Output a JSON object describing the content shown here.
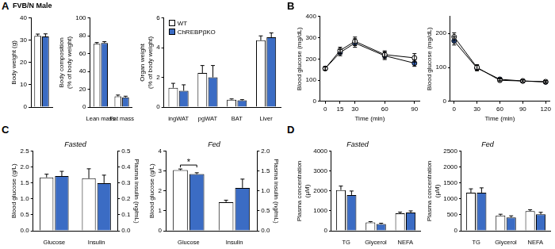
{
  "title": "FVB/N Male",
  "chart_data": [
    {
      "type": "bar",
      "panel": "A",
      "y_label": "Body weight (g)",
      "categories": [
        null
      ],
      "ylim": [
        0,
        40
      ],
      "yticks": [
        0,
        10,
        20,
        30,
        40
      ],
      "series": [
        {
          "name": "WT",
          "color": "#ffffff",
          "values": [
            32.0
          ],
          "errors": [
            0.8
          ]
        },
        {
          "name": "ChREBPβKO",
          "color": "#3b6cc4",
          "values": [
            31.7
          ],
          "errors": [
            1.2
          ]
        }
      ]
    },
    {
      "type": "bar",
      "panel": "A",
      "y_label": "Body composition (% of body weight)",
      "categories": [
        "Lean mass",
        "Fat mass"
      ],
      "ylim": [
        0,
        100
      ],
      "yticks": [
        0,
        20,
        40,
        60,
        80,
        100
      ],
      "series": [
        {
          "name": "WT",
          "color": "#ffffff",
          "values": [
            71,
            12
          ],
          "errors": [
            1.5,
            1.5
          ]
        },
        {
          "name": "ChREBPβKO",
          "color": "#3b6cc4",
          "values": [
            72,
            11
          ],
          "errors": [
            1.5,
            1.2
          ]
        }
      ]
    },
    {
      "type": "bar",
      "panel": "A",
      "y_label": "Organ weight (% of body weight)",
      "categories": [
        "ingWAT",
        "pgWAT",
        "BAT",
        "Liver"
      ],
      "ylim": [
        0,
        6
      ],
      "yticks": [
        0,
        2,
        4,
        6
      ],
      "legend": "upper left",
      "series": [
        {
          "name": "WT",
          "color": "#ffffff",
          "values": [
            1.3,
            2.3,
            0.5,
            4.5
          ],
          "errors": [
            0.3,
            0.5,
            0.05,
            0.3
          ]
        },
        {
          "name": "ChREBPβKO",
          "color": "#3b6cc4",
          "values": [
            1.1,
            2.0,
            0.45,
            4.7
          ],
          "errors": [
            0.4,
            0.8,
            0.05,
            0.3
          ]
        }
      ]
    },
    {
      "type": "line",
      "panel": "B",
      "x_label": "Time (min)",
      "y_label": "Blood glucose (mg/dL)",
      "x": [
        0,
        15,
        30,
        60,
        90
      ],
      "xlim": [
        -5,
        95
      ],
      "xticks": [
        0,
        15,
        30,
        60,
        90
      ],
      "ylim": [
        0,
        400
      ],
      "yticks": [
        0,
        100,
        200,
        300,
        400
      ],
      "series": [
        {
          "name": "WT",
          "color": "#ffffff",
          "marker": "circle",
          "values": [
            155,
            240,
            283,
            220,
            205
          ],
          "errors": [
            8,
            15,
            20,
            18,
            20
          ]
        },
        {
          "name": "ChREBPβKO",
          "color": "#3b6cc4",
          "marker": "circle",
          "values": [
            155,
            230,
            275,
            215,
            180
          ],
          "errors": [
            8,
            15,
            20,
            18,
            15
          ]
        }
      ]
    },
    {
      "type": "line",
      "panel": "B",
      "x_label": "Time (min)",
      "y_label": "Blood glucose (mg/dL)",
      "x": [
        0,
        30,
        60,
        90,
        120
      ],
      "xlim": [
        -5,
        125
      ],
      "xticks": [
        0,
        30,
        60,
        90,
        120
      ],
      "ylim": [
        0,
        250
      ],
      "yticks": [
        0,
        100,
        200
      ],
      "series": [
        {
          "name": "WT",
          "color": "#ffffff",
          "marker": "circle",
          "values": [
            190,
            100,
            62,
            60,
            58
          ],
          "errors": [
            12,
            8,
            4,
            3,
            3
          ]
        },
        {
          "name": "ChREBPβKO",
          "color": "#3b6cc4",
          "marker": "circle",
          "values": [
            178,
            98,
            65,
            60,
            57
          ],
          "errors": [
            12,
            8,
            4,
            3,
            3
          ]
        }
      ]
    },
    {
      "type": "bar",
      "panel": "C",
      "title": "Fasted",
      "y_label": "Blood glucose (g/L)",
      "y2_label": "Plasma insulin (ng/mL)",
      "categories": [
        "Glucose",
        "Insulin"
      ],
      "ylim": [
        0,
        2.5
      ],
      "yticks": [
        {
          "value": 0,
          "label": "0.0"
        },
        0.5,
        {
          "value": 1,
          "label": "1.0"
        },
        1.5,
        {
          "value": 2,
          "label": "2.0"
        },
        2.5
      ],
      "y2lim": [
        0,
        0.5
      ],
      "y2ticks": [
        {
          "value": 0,
          "label": "0.0"
        },
        0.1,
        0.2,
        0.3,
        0.4,
        0.5
      ],
      "series": [
        {
          "name": "WT",
          "color": "#ffffff",
          "values": [
            1.68,
            null
          ],
          "errors": [
            0.1,
            null
          ]
        },
        {
          "name": "ChREBPβKO",
          "color": "#3b6cc4",
          "values": [
            1.72,
            null
          ],
          "errors": [
            0.15,
            null
          ]
        },
        {
          "name": "WT",
          "color": "#ffffff",
          "axis": "y2",
          "values": [
            null,
            0.33
          ],
          "errors": [
            null,
            0.06
          ]
        },
        {
          "name": "ChREBPβKO",
          "color": "#3b6cc4",
          "axis": "y2",
          "values": [
            null,
            0.3
          ],
          "errors": [
            null,
            0.05
          ]
        }
      ]
    },
    {
      "type": "bar",
      "panel": "C",
      "title": "Fed",
      "y_label": "Blood glucose (g/L)",
      "y2_label": "Plasma insulin (ng/mL)",
      "categories": [
        "Glucose",
        "Insulin"
      ],
      "ylim": [
        0,
        4
      ],
      "yticks": [
        0,
        1,
        2,
        3,
        4
      ],
      "y2lim": [
        0,
        2
      ],
      "y2ticks": [
        {
          "value": 0,
          "label": "0.0"
        },
        0.5,
        {
          "value": 1,
          "label": "1.0"
        },
        1.5,
        {
          "value": 2,
          "label": "2.0"
        }
      ],
      "annotations": [
        {
          "text": "*",
          "category": "Glucose"
        }
      ],
      "series": [
        {
          "name": "WT",
          "color": "#ffffff",
          "values": [
            3.05,
            null
          ],
          "errors": [
            0.06,
            null
          ]
        },
        {
          "name": "ChREBPβKO",
          "color": "#3b6cc4",
          "values": [
            2.85,
            null
          ],
          "errors": [
            0.07,
            null
          ]
        },
        {
          "name": "WT",
          "color": "#ffffff",
          "axis": "y2",
          "values": [
            null,
            0.72
          ],
          "errors": [
            null,
            0.05
          ]
        },
        {
          "name": "ChREBPβKO",
          "color": "#3b6cc4",
          "axis": "y2",
          "values": [
            null,
            1.08
          ],
          "errors": [
            null,
            0.22
          ]
        }
      ]
    },
    {
      "type": "bar",
      "panel": "D",
      "title": "Fasted",
      "y_label": "Plasma concentration (µM)",
      "categories": [
        "TG",
        "Glycerol",
        "NEFA"
      ],
      "ylim": [
        0,
        4000
      ],
      "yticks": [
        0,
        1000,
        2000,
        3000,
        4000
      ],
      "series": [
        {
          "name": "WT",
          "color": "#ffffff",
          "values": [
            2050,
            420,
            880
          ],
          "errors": [
            200,
            40,
            60
          ]
        },
        {
          "name": "ChREBPβKO",
          "color": "#3b6cc4",
          "values": [
            1800,
            340,
            920
          ],
          "errors": [
            200,
            40,
            80
          ]
        }
      ]
    },
    {
      "type": "bar",
      "panel": "D",
      "title": "Fed",
      "y_label": "Plasma concentration (µM)",
      "categories": [
        "TG",
        "Glycerol",
        "NEFA"
      ],
      "ylim": [
        0,
        2500
      ],
      "yticks": [
        0,
        500,
        1000,
        1500,
        2000,
        2500
      ],
      "series": [
        {
          "name": "WT",
          "color": "#ffffff",
          "values": [
            1200,
            480,
            620
          ],
          "errors": [
            120,
            40,
            40
          ]
        },
        {
          "name": "ChREBPβKO",
          "color": "#3b6cc4",
          "values": [
            1200,
            420,
            520
          ],
          "errors": [
            150,
            50,
            60
          ]
        }
      ]
    }
  ]
}
